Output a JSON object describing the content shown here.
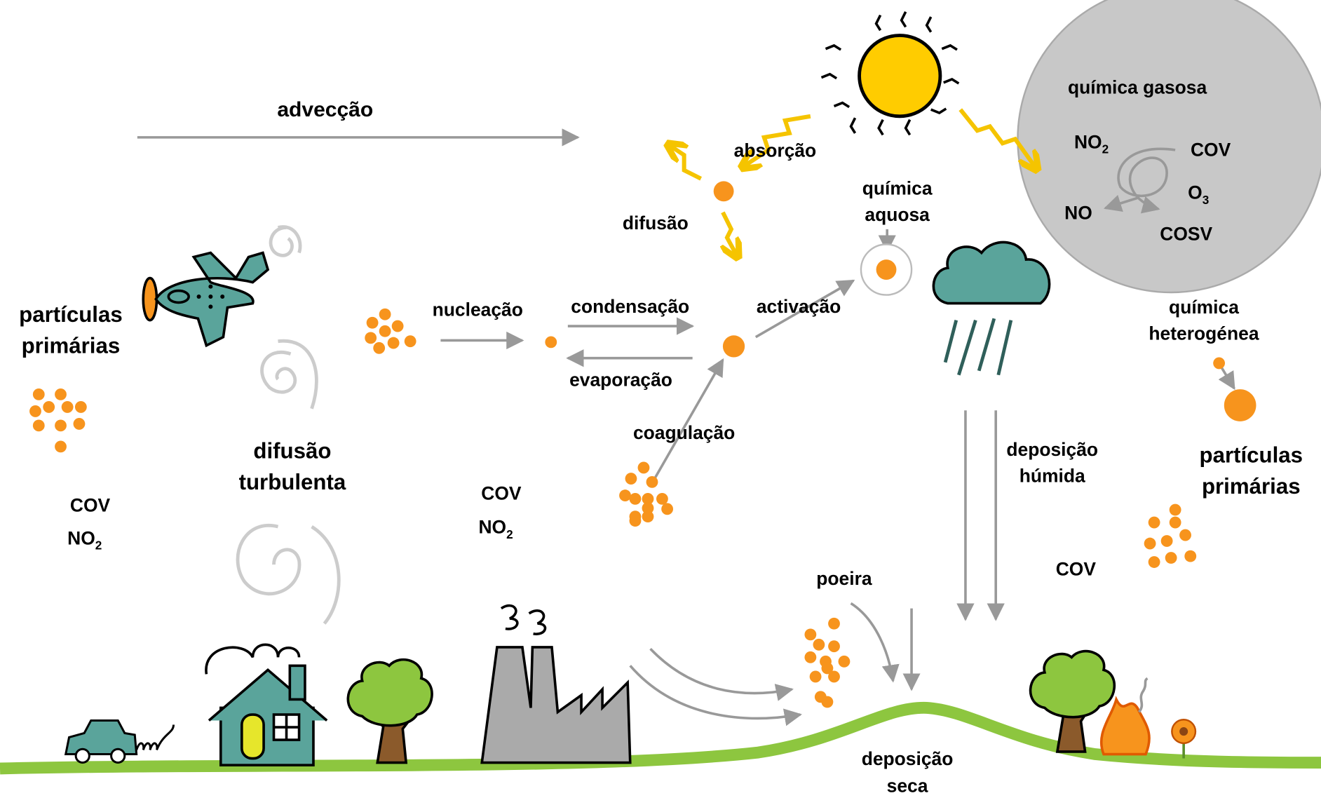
{
  "labels": [
    {
      "text": "advecção"
    },
    {
      "text": "absorção"
    },
    {
      "text": "difusão"
    },
    {
      "text": "química gasosa"
    },
    {
      "text": "NO",
      "sub": "2"
    },
    {
      "text": "COV"
    },
    {
      "text": "O",
      "sub": "3"
    },
    {
      "text": "NO"
    },
    {
      "text": "COSV"
    },
    {
      "text": "química"
    },
    {
      "text": "aquosa"
    },
    {
      "text": "partículas"
    },
    {
      "text": "primárias"
    },
    {
      "text": "nucleação"
    },
    {
      "text": "condensação"
    },
    {
      "text": "activação"
    },
    {
      "text": "evaporação"
    },
    {
      "text": "química"
    },
    {
      "text": "heterogénea"
    },
    {
      "text": "coagulação"
    },
    {
      "text": "difusão"
    },
    {
      "text": "turbulenta"
    },
    {
      "text": "deposição"
    },
    {
      "text": "húmida"
    },
    {
      "text": "partículas"
    },
    {
      "text": "primárias"
    },
    {
      "text": "COV"
    },
    {
      "text": "NO",
      "sub": "2"
    },
    {
      "text": "COV"
    },
    {
      "text": "NO",
      "sub": "2"
    },
    {
      "text": "poeira"
    },
    {
      "text": "COV"
    },
    {
      "text": "deposição"
    },
    {
      "text": "seca"
    }
  ]
}
